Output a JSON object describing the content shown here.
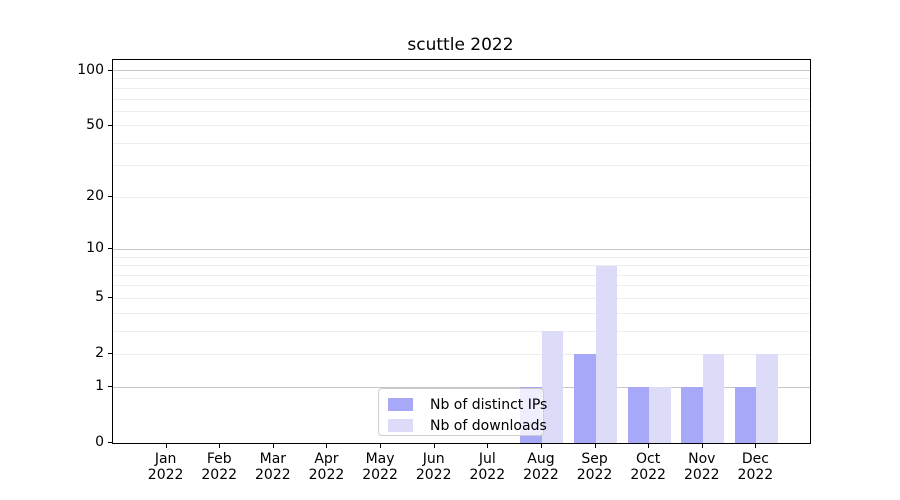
{
  "title": "scuttle 2022",
  "chart_data": {
    "type": "bar",
    "title": "scuttle 2022",
    "categories": [
      "Jan 2022",
      "Feb 2022",
      "Mar 2022",
      "Apr 2022",
      "May 2022",
      "Jun 2022",
      "Jul 2022",
      "Aug 2022",
      "Sep 2022",
      "Oct 2022",
      "Nov 2022",
      "Dec 2022"
    ],
    "series": [
      {
        "name": "Nb of distinct IPs",
        "color": "#a8a8f8",
        "values": [
          0,
          0,
          0,
          0,
          0,
          0,
          0,
          1,
          2,
          1,
          1,
          1
        ]
      },
      {
        "name": "Nb of downloads",
        "color": "#dcdcf9",
        "values": [
          0,
          0,
          0,
          0,
          0,
          0,
          0,
          3,
          8,
          1,
          2,
          2
        ]
      }
    ],
    "yscale": "log1p",
    "ylim": [
      0,
      115
    ],
    "yticks_labeled": [
      0,
      1,
      2,
      5,
      10,
      20,
      50,
      100
    ],
    "grid_major": [
      1,
      10,
      100
    ],
    "grid_minor": [
      2,
      3,
      4,
      5,
      6,
      7,
      8,
      9,
      20,
      30,
      40,
      50,
      60,
      70,
      80,
      90
    ],
    "grid": "both",
    "legend_position": "inside-lower-center",
    "colors": {
      "grid_major": "#c6c6c6",
      "grid_minor": "#ededed",
      "axis": "#000000",
      "background": "#ffffff"
    }
  }
}
